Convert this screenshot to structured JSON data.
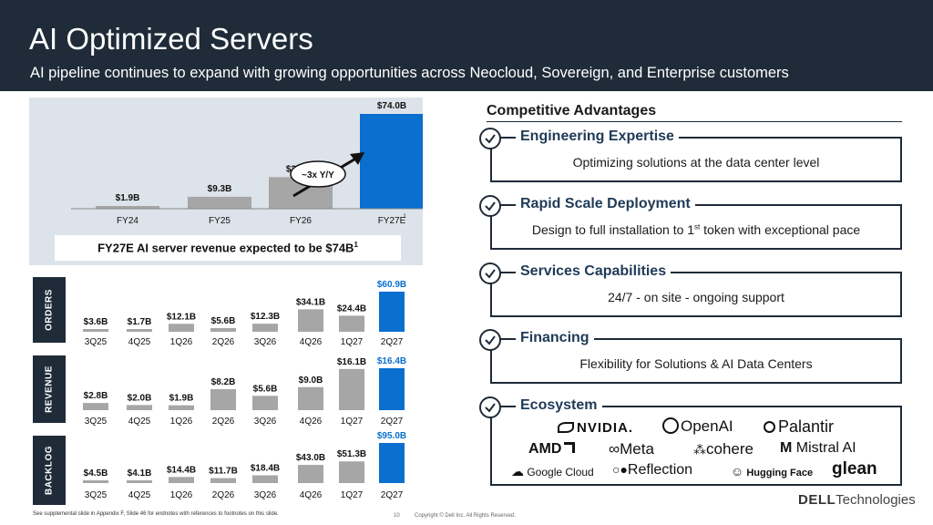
{
  "header": {
    "title": "AI Optimized Servers",
    "subtitle": "AI pipeline continues to expand with growing opportunities across Neocloud, Sovereign, and Enterprise customers"
  },
  "colors": {
    "header_bg": "#1f2b38",
    "bar_gray": "#a6a6a6",
    "bar_blue": "#0a6fce",
    "value_blue": "#0a6fce",
    "panel_bg": "#dde3ea"
  },
  "chart_data": [
    {
      "type": "bar",
      "categories": [
        "FY24",
        "FY25",
        "FY26",
        "FY27E"
      ],
      "values": [
        1.9,
        9.3,
        24.7,
        74.0
      ],
      "value_labels": [
        "$1.9B",
        "$9.3B",
        "$24.7B",
        "$74.0B"
      ],
      "category_footnote": "1",
      "annotation": "~3x Y/Y",
      "caption": "FY27E AI server revenue expected to be $74B",
      "caption_sup": "1",
      "highlight_index": 3
    },
    {
      "type": "bar",
      "label": "ORDERS",
      "categories": [
        "3Q25",
        "4Q25",
        "1Q26",
        "2Q26",
        "3Q26",
        "4Q26",
        "1Q27",
        "2Q27"
      ],
      "values": [
        3.6,
        1.7,
        12.1,
        5.6,
        12.3,
        34.1,
        24.4,
        60.9
      ],
      "value_labels": [
        "$3.6B",
        "$1.7B",
        "$12.1B",
        "$5.6B",
        "$12.3B",
        "$34.1B",
        "$24.4B",
        "$60.9B"
      ],
      "highlight_index": 7
    },
    {
      "type": "bar",
      "label": "REVENUE",
      "categories": [
        "3Q25",
        "4Q25",
        "1Q26",
        "2Q26",
        "3Q26",
        "4Q26",
        "1Q27",
        "2Q27"
      ],
      "values": [
        2.8,
        2.0,
        1.9,
        8.2,
        5.6,
        9.0,
        16.1,
        16.4
      ],
      "value_labels": [
        "$2.8B",
        "$2.0B",
        "$1.9B",
        "$8.2B",
        "$5.6B",
        "$9.0B",
        "$16.1B",
        "$16.4B"
      ],
      "highlight_index": 7
    },
    {
      "type": "bar",
      "label": "BACKLOG",
      "categories": [
        "3Q25",
        "4Q25",
        "1Q26",
        "2Q26",
        "3Q26",
        "4Q26",
        "1Q27",
        "2Q27"
      ],
      "values": [
        4.5,
        4.1,
        14.4,
        11.7,
        18.4,
        43.0,
        51.3,
        95.0
      ],
      "value_labels": [
        "$4.5B",
        "$4.1B",
        "$14.4B",
        "$11.7B",
        "$18.4B",
        "$43.0B",
        "$51.3B",
        "$95.0B"
      ],
      "highlight_index": 7
    }
  ],
  "advantages": {
    "heading": "Competitive Advantages",
    "items": [
      {
        "title": "Engineering Expertise",
        "desc": "Optimizing solutions at the data center level",
        "desc_sup": "",
        "desc_after": ""
      },
      {
        "title": "Rapid Scale Deployment",
        "desc": "Design to full installation to 1",
        "desc_sup": "st",
        "desc_after": " token with exceptional pace"
      },
      {
        "title": "Services Capabilities",
        "desc": "24/7 - on site - ongoing support",
        "desc_sup": "",
        "desc_after": ""
      },
      {
        "title": "Financing",
        "desc": "Flexibility for Solutions & AI Data Centers",
        "desc_sup": "",
        "desc_after": ""
      }
    ],
    "ecosystem_title": "Ecosystem",
    "logos": [
      "NVIDIA.",
      "OpenAI",
      "Palantir",
      "AMD",
      "Meta",
      "cohere",
      "Mistral AI",
      "Google Cloud",
      "Reflection",
      "Hugging Face",
      "glean"
    ]
  },
  "footer": {
    "footnote": "See supplemental slide in Appendix F, Slide 46 for endnotes with references to footnotes on this slide.",
    "page": "10",
    "copyright": "Copyright © Dell Inc. All Rights Reserved.",
    "brand_bold": "DELL",
    "brand_rest": "Technologies"
  }
}
